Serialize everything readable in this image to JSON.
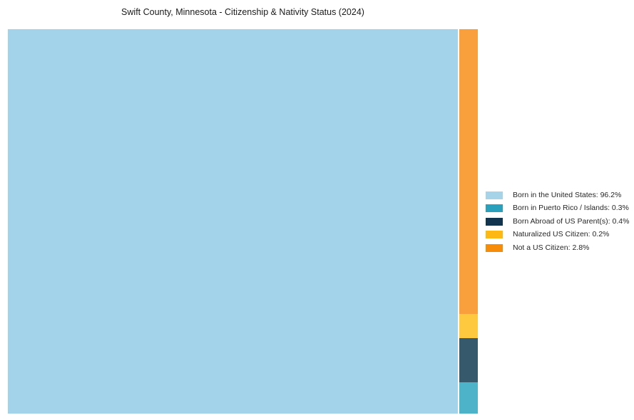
{
  "title": "Swift County, Minnesota - Citizenship & Nativity Status (2024)",
  "chart_data": {
    "type": "treemap",
    "title": "Swift County, Minnesota - Citizenship & Nativity Status (2024)",
    "categories": [
      "Born in the United States",
      "Born in Puerto Rico / Islands",
      "Born Abroad of US Parent(s)",
      "Naturalized US Citizen",
      "Not a US Citizen"
    ],
    "values": [
      96.2,
      0.3,
      0.4,
      0.2,
      2.8
    ],
    "unit": "%",
    "layout": "squarify treemap: largest category fills full-height left block; remaining categories stacked in a narrow right column ordered top-to-bottom: Not a US Citizen, Naturalized US Citizen, Born Abroad of US Parent(s), Born in Puerto Rico / Islands; no axes, no gridlines",
    "legend_position": "right of plot, vertically centered",
    "fill_colors": {
      "born_us": "#A3D3EA",
      "puerto_rico": "#4DB3C8",
      "born_abroad": "#36596C",
      "naturalized": "#FFC93F",
      "not_citizen": "#F9A03C"
    },
    "background_color": "#FFFFFF"
  },
  "legend": {
    "items": [
      {
        "name": "born_us",
        "label": "Born in the United States: 96.2%",
        "color": "#A6D3E8"
      },
      {
        "name": "puerto_rico",
        "label": "Born in Puerto Rico / Islands: 0.3%",
        "color": "#2AA0BC"
      },
      {
        "name": "born_abroad",
        "label": "Born Abroad of US Parent(s): 0.4%",
        "color": "#12344E"
      },
      {
        "name": "naturalized",
        "label": "Naturalized US Citizen: 0.2%",
        "color": "#FDB813"
      },
      {
        "name": "not_citizen",
        "label": "Not a US Citizen: 2.8%",
        "color": "#F78C0A"
      }
    ]
  }
}
